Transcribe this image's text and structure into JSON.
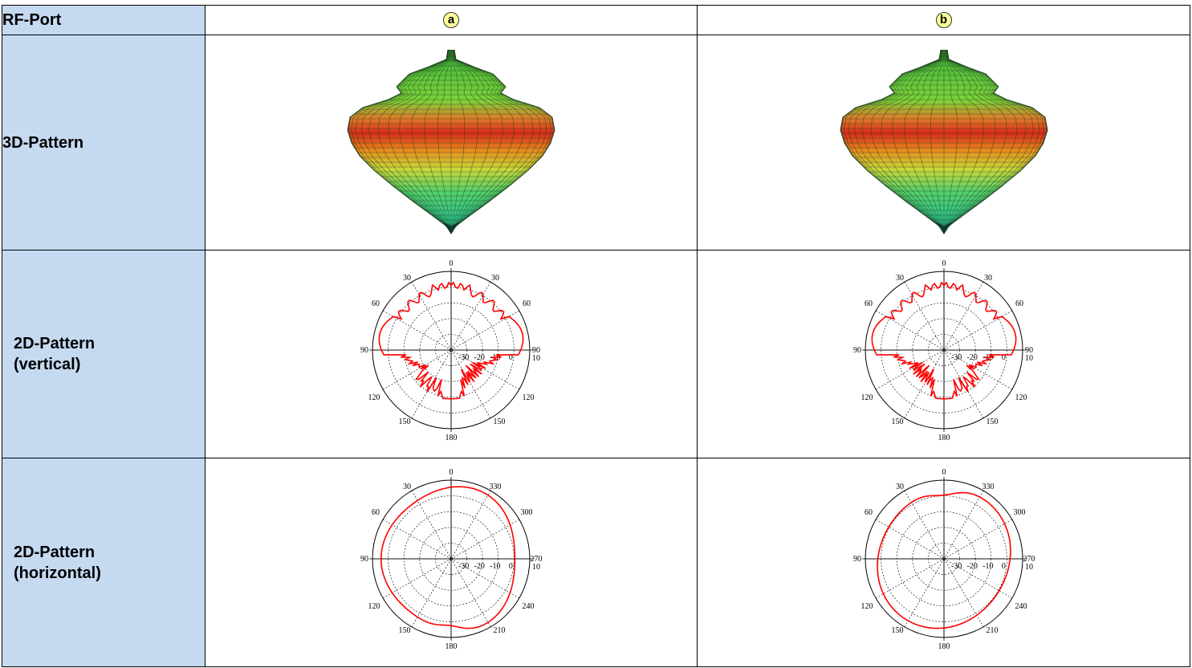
{
  "rows": {
    "rf_port": "RF-Port",
    "pattern3d": "3D-Pattern",
    "vertical": {
      "line1": "2D-Pattern",
      "line2": "(vertical)"
    },
    "horizontal": {
      "line1": "2D-Pattern",
      "line2": "(horizontal)"
    }
  },
  "ports": [
    "a",
    "b"
  ],
  "colors": {
    "label_bg": "#c5d9f1",
    "badge_bg": "#ffff99",
    "trace": "#ff0000"
  },
  "vertical_ticks": {
    "angles": [
      "0",
      "30",
      "30",
      "60",
      "60",
      "90",
      "90",
      "120",
      "120",
      "150",
      "150",
      "180"
    ],
    "radial": [
      "-30",
      "-20",
      "-10",
      "0",
      "10"
    ]
  },
  "horizontal_ticks": {
    "angles": [
      "0",
      "30",
      "330",
      "60",
      "300",
      "90",
      "270",
      "120",
      "240",
      "150",
      "210",
      "180"
    ],
    "radial": [
      "-30",
      "-20",
      "-10",
      "0",
      "10"
    ]
  }
}
